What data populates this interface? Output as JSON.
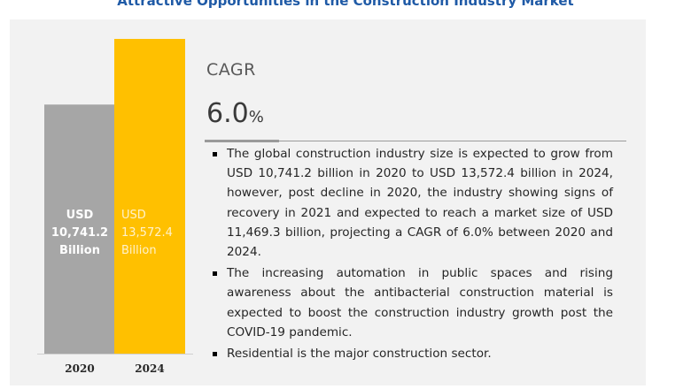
{
  "header": {
    "title": "Attractive Opportunities in the Construction Industry Market"
  },
  "cagr": {
    "label": "CAGR",
    "value": "6.0",
    "unit": "%"
  },
  "bullets": [
    "The global construction industry size is expected to grow from USD 10,741.2 billion in 2020 to USD 13,572.4 billion in 2024, however, post decline in 2020, the industry showing signs of recovery in 2021 and expected to reach a market size of USD 11,469.3 billion, projecting a CAGR of 6.0% between 2020 and 2024.",
    "The increasing automation in public spaces and rising awareness about the antibacterial construction material is expected to boost the construction industry growth post the COVID-19 pandemic.",
    "Residential is the major construction sector."
  ],
  "chart_data": {
    "type": "bar",
    "categories": [
      "2020",
      "2024"
    ],
    "values": [
      10741.2,
      13572.4
    ],
    "data_labels": [
      [
        "USD",
        "10,741.2",
        "Billion"
      ],
      [
        "USD",
        "13,572.4",
        "Billion"
      ]
    ],
    "colors": [
      "#a6a6a6",
      "#ffc000"
    ],
    "label_colors": [
      "#ffffff",
      "#fff2cc"
    ],
    "label_weights": [
      "bold",
      "normal"
    ],
    "ylim": [
      0,
      13572.4
    ],
    "title": "",
    "xlabel": "",
    "ylabel": "",
    "grid": false
  }
}
